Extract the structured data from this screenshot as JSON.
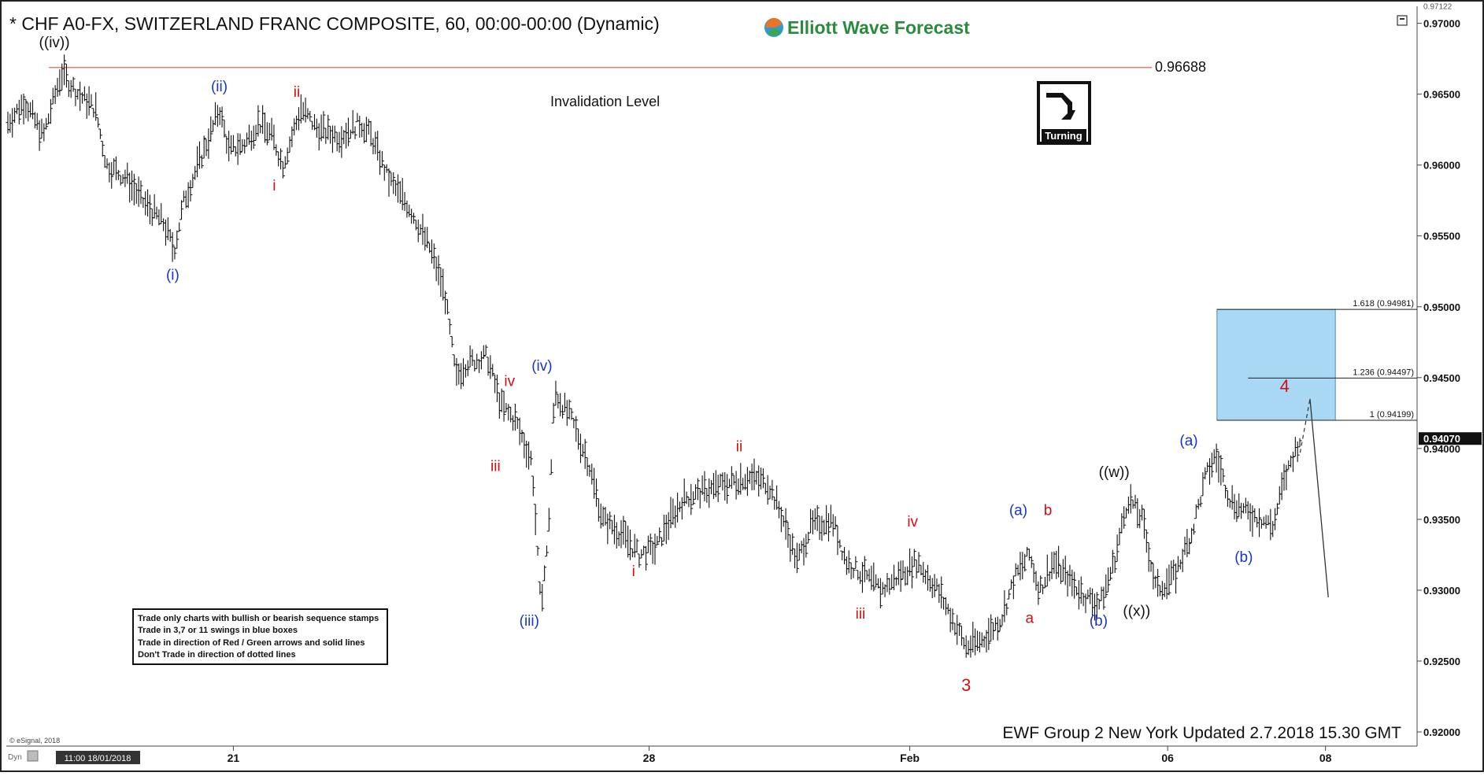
{
  "header": {
    "title": "* CHF A0-FX, SWITZERLAND FRANC COMPOSITE, 60, 00:00-00:00 (Dynamic)",
    "brand": "Elliott Wave Forecast"
  },
  "footer": {
    "update_text": "EWF Group 2 New York Updated 2.7.2018 15.30 GMT",
    "copyright": "© eSignal, 2018",
    "dyn_label": "Dyn",
    "cursor_time": "11:00 18/01/2018"
  },
  "turning_badge": {
    "label": "Turning"
  },
  "invalidation": {
    "label": "Invalidation Level",
    "value_label": "0.96688",
    "value": 0.96688,
    "color": "#e05050"
  },
  "rules_box": {
    "lines": [
      "Trade only charts with bullish or bearish sequence stamps",
      "Trade in 3,7 or 11 swings in blue boxes",
      "Trade in direction of Red / Green arrows and solid lines",
      "Don't Trade in direction of dotted lines"
    ]
  },
  "colors": {
    "wave_blue": "#1a35c8",
    "wave_red": "#d01010",
    "wave_black": "#111111",
    "target_box": "#a9d8f5",
    "price_bars": "#111111"
  },
  "chart_data": {
    "type": "ohlc",
    "symbol": "CHF A0-FX",
    "timeframe": "60",
    "ylim": [
      0.919,
      0.9712
    ],
    "y_ticks": [
      0.97,
      0.965,
      0.96,
      0.955,
      0.95,
      0.945,
      0.94,
      0.935,
      0.93,
      0.925,
      0.92
    ],
    "y_top_label": "0.97122",
    "current_price": 0.9407,
    "current_price_label": "0.94070",
    "x_ticks": [
      {
        "label": "21",
        "pos": 0.16
      },
      {
        "label": "28",
        "pos": 0.455
      },
      {
        "label": "Feb",
        "pos": 0.64
      },
      {
        "label": "06",
        "pos": 0.823
      },
      {
        "label": "08",
        "pos": 0.935
      }
    ],
    "price_path": [
      [
        0.0,
        0.963
      ],
      [
        0.012,
        0.9645
      ],
      [
        0.025,
        0.962
      ],
      [
        0.038,
        0.9665
      ],
      [
        0.05,
        0.965
      ],
      [
        0.062,
        0.964
      ],
      [
        0.07,
        0.96
      ],
      [
        0.085,
        0.959
      ],
      [
        0.095,
        0.9575
      ],
      [
        0.11,
        0.956
      ],
      [
        0.118,
        0.954
      ],
      [
        0.125,
        0.9575
      ],
      [
        0.135,
        0.96
      ],
      [
        0.145,
        0.9625
      ],
      [
        0.15,
        0.964
      ],
      [
        0.157,
        0.961
      ],
      [
        0.168,
        0.9615
      ],
      [
        0.178,
        0.963
      ],
      [
        0.188,
        0.962
      ],
      [
        0.195,
        0.96
      ],
      [
        0.208,
        0.964
      ],
      [
        0.22,
        0.9625
      ],
      [
        0.235,
        0.962
      ],
      [
        0.25,
        0.963
      ],
      [
        0.258,
        0.962
      ],
      [
        0.27,
        0.959
      ],
      [
        0.285,
        0.957
      ],
      [
        0.3,
        0.954
      ],
      [
        0.31,
        0.951
      ],
      [
        0.318,
        0.945
      ],
      [
        0.325,
        0.946
      ],
      [
        0.34,
        0.9465
      ],
      [
        0.35,
        0.943
      ],
      [
        0.36,
        0.942
      ],
      [
        0.372,
        0.939
      ],
      [
        0.378,
        0.929
      ],
      [
        0.383,
        0.933
      ],
      [
        0.388,
        0.944
      ],
      [
        0.4,
        0.942
      ],
      [
        0.412,
        0.939
      ],
      [
        0.422,
        0.935
      ],
      [
        0.435,
        0.934
      ],
      [
        0.448,
        0.9325
      ],
      [
        0.46,
        0.933
      ],
      [
        0.47,
        0.935
      ],
      [
        0.48,
        0.9365
      ],
      [
        0.495,
        0.937
      ],
      [
        0.51,
        0.9375
      ],
      [
        0.525,
        0.938
      ],
      [
        0.54,
        0.9375
      ],
      [
        0.55,
        0.935
      ],
      [
        0.56,
        0.932
      ],
      [
        0.57,
        0.9345
      ],
      [
        0.585,
        0.935
      ],
      [
        0.595,
        0.932
      ],
      [
        0.608,
        0.931
      ],
      [
        0.62,
        0.93
      ],
      [
        0.632,
        0.931
      ],
      [
        0.645,
        0.932
      ],
      [
        0.66,
        0.93
      ],
      [
        0.67,
        0.928
      ],
      [
        0.68,
        0.926
      ],
      [
        0.692,
        0.9265
      ],
      [
        0.705,
        0.928
      ],
      [
        0.715,
        0.931
      ],
      [
        0.725,
        0.9325
      ],
      [
        0.732,
        0.93
      ],
      [
        0.742,
        0.932
      ],
      [
        0.755,
        0.9305
      ],
      [
        0.765,
        0.9295
      ],
      [
        0.775,
        0.929
      ],
      [
        0.785,
        0.932
      ],
      [
        0.795,
        0.9365
      ],
      [
        0.805,
        0.935
      ],
      [
        0.815,
        0.93
      ],
      [
        0.828,
        0.931
      ],
      [
        0.84,
        0.934
      ],
      [
        0.85,
        0.938
      ],
      [
        0.857,
        0.9395
      ],
      [
        0.867,
        0.9365
      ],
      [
        0.878,
        0.9355
      ],
      [
        0.89,
        0.935
      ],
      [
        0.898,
        0.9345
      ],
      [
        0.905,
        0.9375
      ],
      [
        0.912,
        0.9395
      ],
      [
        0.917,
        0.9407
      ]
    ],
    "dashed_projection": [
      [
        0.917,
        0.9397
      ],
      [
        0.924,
        0.9435
      ]
    ],
    "solid_projection": [
      [
        0.924,
        0.9435
      ],
      [
        0.937,
        0.9295
      ]
    ],
    "target_box": {
      "x0": 0.858,
      "x1": 0.942,
      "y0": 0.94199,
      "y1": 0.94981
    },
    "fib_levels": [
      {
        "label": "1.618 (0.94981)",
        "value": 0.94981
      },
      {
        "label": "1.236 (0.94497)",
        "value": 0.94497
      },
      {
        "label": "1 (0.94199)",
        "value": 0.94199
      }
    ],
    "wave_labels": [
      {
        "text": "((iv))",
        "x": 0.033,
        "price": 0.9683,
        "color": "black"
      },
      {
        "text": "(ii)",
        "x": 0.15,
        "price": 0.9652,
        "color": "blue"
      },
      {
        "text": "ii",
        "x": 0.205,
        "price": 0.9648,
        "color": "red"
      },
      {
        "text": "i",
        "x": 0.189,
        "price": 0.9582,
        "color": "red"
      },
      {
        "text": "(i)",
        "x": 0.117,
        "price": 0.9519,
        "color": "blue"
      },
      {
        "text": "(iv)",
        "x": 0.379,
        "price": 0.9455,
        "color": "blue"
      },
      {
        "text": "iv",
        "x": 0.356,
        "price": 0.9444,
        "color": "red"
      },
      {
        "text": "iii",
        "x": 0.346,
        "price": 0.9384,
        "color": "red"
      },
      {
        "text": "(iii)",
        "x": 0.37,
        "price": 0.9275,
        "color": "blue"
      },
      {
        "text": "ii",
        "x": 0.519,
        "price": 0.9398,
        "color": "red"
      },
      {
        "text": "i",
        "x": 0.444,
        "price": 0.931,
        "color": "red"
      },
      {
        "text": "iii",
        "x": 0.605,
        "price": 0.928,
        "color": "red"
      },
      {
        "text": "iv",
        "x": 0.642,
        "price": 0.9345,
        "color": "red"
      },
      {
        "text": "3",
        "x": 0.68,
        "price": 0.9229,
        "color": "red"
      },
      {
        "text": "(a)",
        "x": 0.717,
        "price": 0.9353,
        "color": "blue"
      },
      {
        "text": "b",
        "x": 0.738,
        "price": 0.9353,
        "color": "red"
      },
      {
        "text": "a",
        "x": 0.725,
        "price": 0.9277,
        "color": "red"
      },
      {
        "text": "(b)",
        "x": 0.774,
        "price": 0.9275,
        "color": "blue"
      },
      {
        "text": "((w))",
        "x": 0.785,
        "price": 0.938,
        "color": "black"
      },
      {
        "text": "((x))",
        "x": 0.801,
        "price": 0.9282,
        "color": "black"
      },
      {
        "text": "(a)",
        "x": 0.838,
        "price": 0.9402,
        "color": "blue"
      },
      {
        "text": "(b)",
        "x": 0.877,
        "price": 0.932,
        "color": "blue"
      },
      {
        "text": "4",
        "x": 0.906,
        "price": 0.944,
        "color": "red"
      }
    ]
  }
}
